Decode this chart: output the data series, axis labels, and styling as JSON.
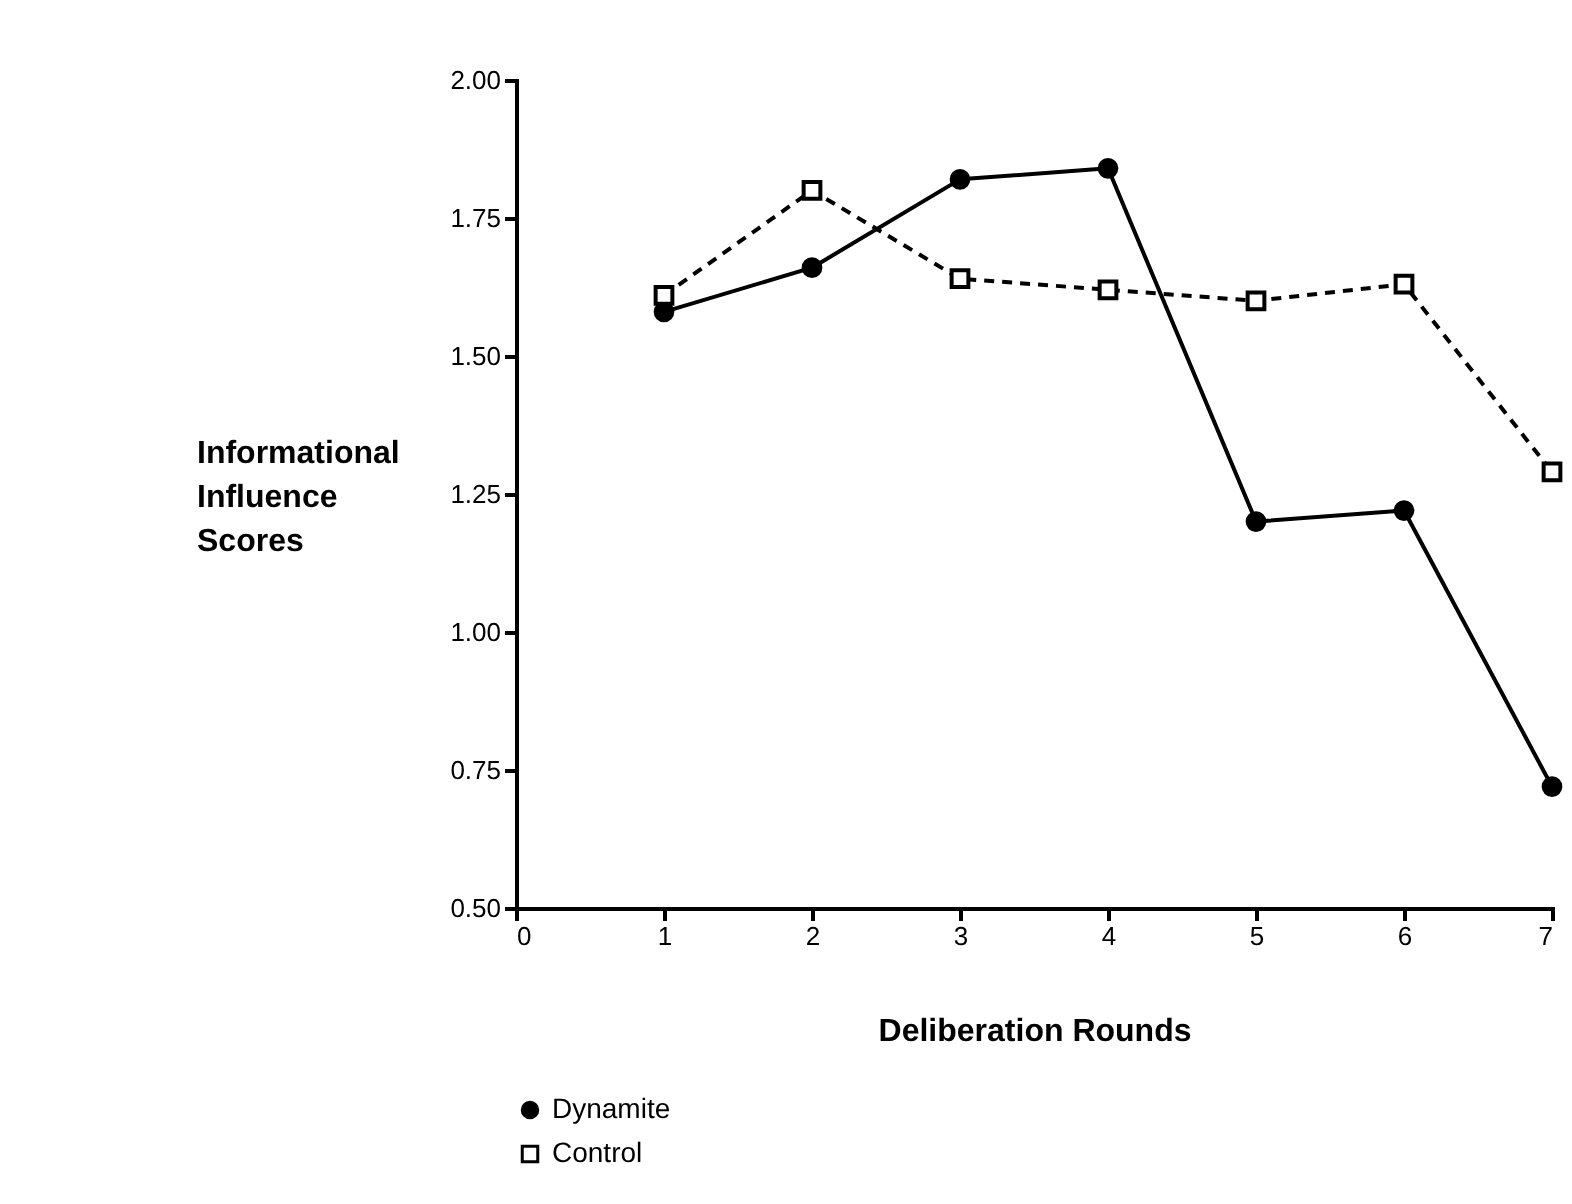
{
  "chart_data": {
    "type": "line",
    "xlabel": "Deliberation Rounds",
    "ylabel": "Informational Influence Scores",
    "x": [
      1,
      2,
      3,
      4,
      5,
      6,
      7
    ],
    "series": [
      {
        "name": "Dynamite",
        "color": "#000000",
        "marker": "circle",
        "line_style": "solid",
        "values": [
          1.58,
          1.66,
          1.82,
          1.84,
          1.2,
          1.22,
          0.72
        ]
      },
      {
        "name": "Control",
        "color": "#000000",
        "marker": "square",
        "line_style": "dashed",
        "values": [
          1.61,
          1.8,
          1.64,
          1.62,
          1.6,
          1.63,
          1.29
        ]
      }
    ],
    "xlim": [
      0,
      7
    ],
    "xticks": [
      0,
      1,
      2,
      3,
      4,
      5,
      6,
      7
    ],
    "ylim": [
      0.5,
      2.0
    ],
    "yticks": [
      {
        "value": 0.5,
        "label": "0.50"
      },
      {
        "value": 0.75,
        "label": "0.75"
      },
      {
        "value": 1.0,
        "label": "1.00"
      },
      {
        "value": 1.25,
        "label": "1.25"
      },
      {
        "value": 1.5,
        "label": "1.50"
      },
      {
        "value": 1.75,
        "label": "1.75"
      },
      {
        "value": 2.0,
        "label": "2.00"
      }
    ],
    "grid": false,
    "legend": "bottom"
  }
}
